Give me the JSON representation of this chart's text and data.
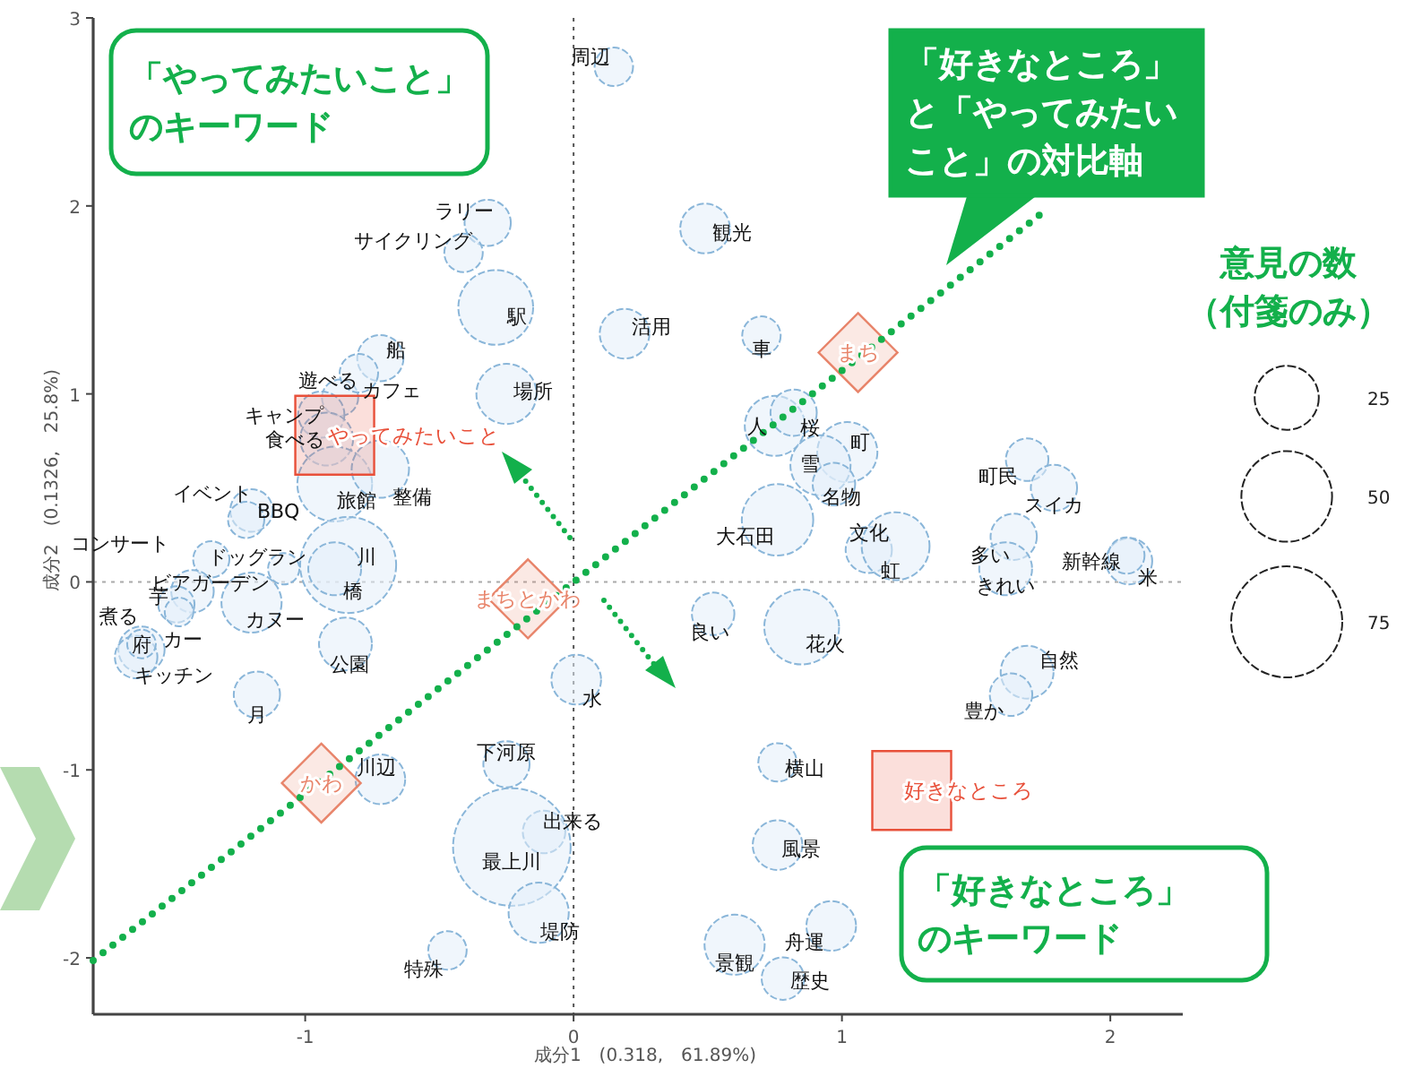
{
  "chart_data": {
    "type": "bubble",
    "xlabel": "成分1　(0.318,　61.89%)",
    "ylabel": "成分2　(0.1326,　25.8%)",
    "legend_title": "意見の数（付箋のみ）",
    "size_legend": [
      25,
      50,
      75
    ],
    "xlim": [
      -1.79,
      2.27
    ],
    "ylim": [
      -2.3,
      3
    ],
    "xticks": [
      -1,
      0,
      1,
      2
    ],
    "yticks": [
      -2,
      -1,
      0,
      1,
      2,
      3
    ],
    "ref_lines": [
      {
        "axis": "x",
        "value": 0,
        "color": "#555555",
        "line_style": "dotted"
      },
      {
        "axis": "y",
        "value": 0,
        "color": "#aaaaaa",
        "line_style": "dotted"
      }
    ],
    "series": [
      {
        "color": "#8ab6d9",
        "x": [
          0.15,
          -0.32,
          -0.41,
          -0.29,
          0.49,
          0.19,
          0.7,
          -0.72,
          -0.87,
          -0.8,
          -0.25,
          -0.94,
          -0.92,
          -1.2,
          -1.22,
          -0.89,
          -0.72,
          -1.35,
          -1.08,
          -0.84,
          -1.42,
          -0.89,
          -1.48,
          -1.61,
          -1.47,
          -1.2,
          -1.63,
          -1.61,
          -0.85,
          -1.18,
          -0.72,
          -0.25,
          -0.11,
          -0.23,
          -0.13,
          -0.47,
          0.01,
          0.52,
          0.85,
          0.76,
          0.76,
          0.96,
          0.6,
          0.78,
          0.75,
          0.82,
          1.02,
          0.92,
          0.97,
          0.76,
          1.1,
          1.2,
          1.69,
          1.79,
          1.64,
          1.61,
          2.07,
          2.06,
          1.69,
          1.63
        ],
        "values": [
          2.74,
          1.91,
          1.75,
          1.46,
          1.88,
          1.32,
          1.31,
          1.19,
          0.98,
          1.11,
          1.0,
          0.89,
          0.76,
          0.38,
          0.33,
          0.52,
          0.6,
          0.12,
          0.07,
          0.09,
          -0.05,
          0.07,
          -0.12,
          -0.36,
          -0.16,
          -0.11,
          -0.4,
          -0.33,
          -0.33,
          -0.6,
          -1.05,
          -0.97,
          -1.33,
          -1.41,
          -1.76,
          -1.96,
          -0.52,
          -0.17,
          -0.24,
          -0.96,
          -1.4,
          -1.83,
          -1.93,
          -2.11,
          0.83,
          0.9,
          0.69,
          0.62,
          0.52,
          0.33,
          0.17,
          0.19,
          0.65,
          0.5,
          0.24,
          0.07,
          0.11,
          0.14,
          -0.48,
          -0.6
        ],
        "sizes": [
          9,
          13,
          9,
          34,
          15,
          15,
          9,
          13,
          8,
          9,
          22,
          13,
          17,
          11,
          8,
          34,
          20,
          8,
          6,
          56,
          11,
          17,
          8,
          13,
          5,
          22,
          11,
          5,
          17,
          13,
          15,
          13,
          11,
          84,
          22,
          9,
          15,
          11,
          34,
          9,
          15,
          15,
          22,
          11,
          22,
          13,
          22,
          22,
          11,
          31,
          13,
          28,
          11,
          13,
          13,
          17,
          13,
          8,
          17,
          11
        ],
        "value_labels": [
          "周辺",
          "ラリー",
          "サイクリング",
          "駅",
          "観光",
          "活用",
          "車",
          "船",
          "遊べる",
          "カフェ",
          "場所",
          "キャンプ",
          "食べる",
          "イベント",
          "BBQ",
          "旅館",
          "整備",
          "コンサート",
          "ドッグラン",
          "川",
          "ビアガーデン",
          "橋",
          "芋",
          "煮る",
          "カー",
          "カヌー",
          "府",
          "キッチン",
          "公園",
          "月",
          "川辺",
          "下河原",
          "出来る",
          "最上川",
          "堤防",
          "特殊",
          "水",
          "良い",
          "花火",
          "横山",
          "風景",
          "舟運",
          "景観",
          "歴史",
          "人",
          "桜",
          "町",
          "雪",
          "名物",
          "大石田",
          "文化",
          "虹",
          "町民",
          "スイカ",
          "多い",
          "きれい",
          "新幹線",
          "米",
          "自然",
          "豊か"
        ]
      },
      {
        "type": "scatter",
        "marker": "square",
        "color": "#e8503a",
        "x": [
          -0.89,
          1.26
        ],
        "values": [
          0.78,
          -1.11
        ],
        "value_labels": [
          "やってみたいこと",
          "好きなところ"
        ]
      },
      {
        "type": "scatter",
        "marker": "diamond",
        "color": "#e8846a",
        "x": [
          1.06,
          -0.17,
          -0.94
        ],
        "values": [
          1.22,
          -0.09,
          -1.07
        ],
        "value_labels": [
          "まち",
          "まちとかわ",
          "かわ"
        ]
      }
    ],
    "annotations": [
      "「やってみたいこと」のキーワード",
      "「好きなところ」と「やってみたいこと」の対比軸",
      "「好きなところ」のキーワード"
    ]
  }
}
